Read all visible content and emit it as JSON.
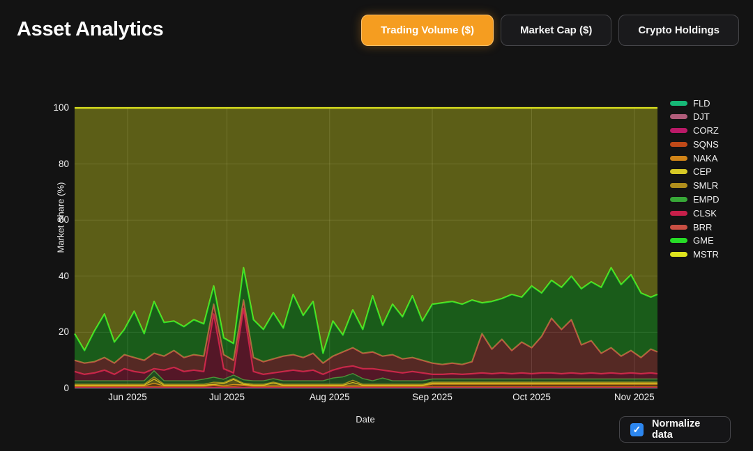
{
  "header": {
    "title": "Asset Analytics"
  },
  "toolbar": {
    "buttons": [
      {
        "label": "Trading Volume ($)",
        "active": true
      },
      {
        "label": "Market Cap ($)",
        "active": false
      },
      {
        "label": "Crypto Holdings",
        "active": false
      }
    ],
    "active_color": "#f59d20"
  },
  "controls": {
    "normalize_label": "Normalize data",
    "checked": true,
    "checkbox_color": "#2d87f0",
    "checkmark": "✓"
  },
  "chart_data": {
    "type": "area",
    "stacked": true,
    "normalized_to_100": true,
    "xlabel": "Date",
    "ylabel": "Market Share (%)",
    "ylim": [
      0,
      100
    ],
    "yticks": [
      0,
      20,
      40,
      60,
      80,
      100
    ],
    "x_start_date": "2025-05-16",
    "x_days": [
      0,
      3,
      6,
      9,
      12,
      15,
      18,
      21,
      24,
      27,
      30,
      33,
      36,
      39,
      42,
      45,
      48,
      51,
      54,
      57,
      60,
      63,
      66,
      69,
      72,
      75,
      78,
      81,
      84,
      87,
      90,
      93,
      96,
      99,
      102,
      105,
      108,
      111,
      114,
      117,
      120,
      123,
      126,
      129,
      132,
      135,
      138,
      141,
      144,
      147,
      150,
      153,
      156,
      159,
      162,
      165,
      168,
      171,
      174,
      176
    ],
    "x_total_days": 176,
    "xticks": [
      {
        "day": 16,
        "label": "Jun 2025"
      },
      {
        "day": 46,
        "label": "Jul 2025"
      },
      {
        "day": 77,
        "label": "Aug 2025"
      },
      {
        "day": 108,
        "label": "Sep 2025"
      },
      {
        "day": 138,
        "label": "Oct 2025"
      },
      {
        "day": 169,
        "label": "Nov 2025"
      }
    ],
    "grid": true,
    "legend_position": "right",
    "fill_alpha": 0.36,
    "series": [
      {
        "name": "FLD",
        "color": "#16b877",
        "values": [
          0.1,
          0.1,
          0.1,
          0.1,
          0.1,
          0.1,
          0.1,
          0.1,
          0.1,
          0.1,
          0.1,
          0.1,
          0.1,
          0.1,
          0.1,
          0.1,
          0.1,
          0.1,
          0.1,
          0.1,
          0.1,
          0.1,
          0.1,
          0.1,
          0.1,
          0.1,
          0.1,
          0.1,
          0.1,
          0.1,
          0.1,
          0.1,
          0.1,
          0.1,
          0.1,
          0.1,
          0.1,
          0.1,
          0.1,
          0.1,
          0.1,
          0.1,
          0.1,
          0.1,
          0.1,
          0.1,
          0.1,
          0.1,
          0.1,
          0.1,
          0.1,
          0.1,
          0.1,
          0.1,
          0.1,
          0.1,
          0.1,
          0.1,
          0.1,
          0.1
        ]
      },
      {
        "name": "DJT",
        "color": "#b05c7a",
        "values": [
          0.1,
          0.1,
          0.1,
          0.1,
          0.1,
          0.1,
          0.1,
          0.1,
          0.1,
          0.1,
          0.1,
          0.1,
          0.1,
          0.1,
          0.1,
          0.1,
          0.1,
          0.1,
          0.1,
          0.1,
          0.1,
          0.1,
          0.1,
          0.1,
          0.1,
          0.1,
          0.1,
          0.1,
          0.1,
          0.1,
          0.1,
          0.1,
          0.1,
          0.1,
          0.1,
          0.1,
          0.1,
          0.1,
          0.1,
          0.1,
          0.1,
          0.1,
          0.1,
          0.1,
          0.1,
          0.1,
          0.1,
          0.1,
          0.1,
          0.1,
          0.1,
          0.1,
          0.1,
          0.1,
          0.1,
          0.1,
          0.1,
          0.1,
          0.1,
          0.1
        ]
      },
      {
        "name": "CORZ",
        "color": "#bb1a68",
        "values": [
          0.15,
          0.15,
          0.15,
          0.15,
          0.15,
          0.15,
          0.15,
          0.15,
          0.15,
          0.15,
          0.15,
          0.15,
          0.15,
          0.15,
          0.15,
          0.15,
          0.15,
          0.15,
          0.15,
          0.15,
          0.15,
          0.15,
          0.15,
          0.15,
          0.15,
          0.15,
          0.15,
          0.15,
          0.15,
          0.15,
          0.15,
          0.15,
          0.15,
          0.15,
          0.15,
          0.15,
          0.15,
          0.15,
          0.15,
          0.15,
          0.15,
          0.15,
          0.15,
          0.15,
          0.15,
          0.15,
          0.15,
          0.15,
          0.15,
          0.15,
          0.15,
          0.15,
          0.15,
          0.15,
          0.15,
          0.15,
          0.15,
          0.15,
          0.15,
          0.15
        ]
      },
      {
        "name": "SQNS",
        "color": "#bf4918",
        "values": [
          0.25,
          0.25,
          0.25,
          0.25,
          0.25,
          0.25,
          0.25,
          0.25,
          0.25,
          0.25,
          0.25,
          0.25,
          0.25,
          0.25,
          0.6,
          0.25,
          0.25,
          0.6,
          0.25,
          0.25,
          0.25,
          0.25,
          0.25,
          0.25,
          0.25,
          0.25,
          0.25,
          0.25,
          0.25,
          0.25,
          0.25,
          0.25,
          0.25,
          0.25,
          0.25,
          0.25,
          0.25,
          0.25,
          0.25,
          0.25,
          0.25,
          0.25,
          0.25,
          0.25,
          0.25,
          0.25,
          0.25,
          0.25,
          0.25,
          0.25,
          0.25,
          0.25,
          0.25,
          0.25,
          0.25,
          0.25,
          0.25,
          0.25,
          0.25,
          0.25
        ]
      },
      {
        "name": "NAKA",
        "color": "#d08418",
        "values": [
          0.3,
          0.3,
          0.3,
          0.3,
          0.3,
          0.3,
          0.3,
          0.3,
          1.2,
          0.3,
          0.3,
          0.3,
          0.3,
          0.3,
          0.3,
          0.3,
          0.8,
          0.3,
          0.3,
          0.3,
          0.3,
          0.3,
          0.3,
          0.3,
          0.3,
          0.3,
          0.3,
          0.3,
          0.3,
          0.3,
          0.3,
          0.3,
          0.3,
          0.3,
          0.3,
          0.3,
          0.9,
          0.9,
          0.9,
          0.9,
          0.9,
          0.9,
          0.9,
          0.9,
          0.9,
          0.9,
          0.9,
          0.9,
          0.9,
          0.9,
          0.9,
          0.9,
          0.9,
          0.9,
          0.9,
          0.9,
          0.9,
          0.9,
          0.9,
          0.9
        ]
      },
      {
        "name": "CEP",
        "color": "#d6c926",
        "values": [
          0.25,
          0.25,
          0.25,
          0.25,
          0.25,
          0.25,
          0.25,
          0.25,
          1.5,
          0.25,
          0.25,
          0.25,
          0.25,
          0.25,
          0.25,
          0.8,
          1.8,
          0.25,
          0.25,
          0.25,
          1.0,
          0.25,
          0.25,
          0.25,
          0.25,
          0.25,
          0.25,
          0.25,
          1.2,
          0.25,
          0.25,
          0.25,
          0.25,
          0.25,
          0.25,
          0.25,
          0.35,
          0.35,
          0.35,
          0.35,
          0.35,
          0.35,
          0.35,
          0.35,
          0.35,
          0.35,
          0.35,
          0.35,
          0.35,
          0.35,
          0.35,
          0.35,
          0.35,
          0.35,
          0.35,
          0.35,
          0.35,
          0.35,
          0.35,
          0.35
        ]
      },
      {
        "name": "SMLR",
        "color": "#b08e1c",
        "values": [
          0.35,
          0.35,
          0.35,
          0.35,
          0.35,
          0.35,
          0.35,
          0.35,
          0.8,
          0.35,
          0.35,
          0.35,
          0.35,
          0.35,
          0.7,
          0.35,
          0.35,
          0.35,
          0.35,
          0.35,
          0.35,
          0.35,
          0.35,
          0.35,
          0.35,
          0.35,
          0.35,
          0.35,
          0.8,
          0.35,
          0.35,
          0.35,
          0.35,
          0.35,
          0.35,
          0.35,
          0.4,
          0.4,
          0.4,
          0.4,
          0.4,
          0.4,
          0.4,
          0.4,
          0.4,
          0.4,
          0.4,
          0.4,
          0.4,
          0.4,
          0.4,
          0.4,
          0.4,
          0.4,
          0.4,
          0.4,
          0.4,
          0.4,
          0.4,
          0.4
        ]
      },
      {
        "name": "EMPD",
        "color": "#37a837",
        "values": [
          1.2,
          1.2,
          1.2,
          1.2,
          1.2,
          1.2,
          1.2,
          1.2,
          2.2,
          1.2,
          1.2,
          1.2,
          1.2,
          1.8,
          1.8,
          1.2,
          1.2,
          1.2,
          1.2,
          1.2,
          1.2,
          1.2,
          1.2,
          1.2,
          1.2,
          1.2,
          2.2,
          2.6,
          2.4,
          2.0,
          1.2,
          2.2,
          1.2,
          1.2,
          1.2,
          1.2,
          1.1,
          1.1,
          1.1,
          1.1,
          1.1,
          1.1,
          1.1,
          1.1,
          1.1,
          1.1,
          1.1,
          1.1,
          1.1,
          1.1,
          1.1,
          1.1,
          1.1,
          1.1,
          1.1,
          1.1,
          1.1,
          1.1,
          1.1,
          1.1
        ]
      },
      {
        "name": "CLSK",
        "color": "#c71f4a",
        "values": [
          3.3,
          2.3,
          2.8,
          3.8,
          2.3,
          4.3,
          3.3,
          2.8,
          0.7,
          3.8,
          4.8,
          3.3,
          3.8,
          2.7,
          22.5,
          3.75,
          0.75,
          25.45,
          3.3,
          2.3,
          2.05,
          3.3,
          3.8,
          3.3,
          3.8,
          2.3,
          2.8,
          3.4,
          2.7,
          3.5,
          4.3,
          2.8,
          3.3,
          2.8,
          3.3,
          2.8,
          1.65,
          1.65,
          1.85,
          1.65,
          1.85,
          2.15,
          1.85,
          2.15,
          1.85,
          2.15,
          1.85,
          2.15,
          2.15,
          1.85,
          2.15,
          1.85,
          2.15,
          1.85,
          2.15,
          1.85,
          2.15,
          1.85,
          2.15,
          1.85
        ]
      },
      {
        "name": "BRR",
        "color": "#c94f43",
        "values": [
          4.0,
          4.0,
          4.0,
          4.5,
          4.0,
          5.0,
          5.0,
          4.5,
          5.5,
          5.0,
          6.0,
          5.0,
          5.5,
          5.5,
          3.5,
          5.0,
          4.5,
          3.0,
          5.0,
          4.5,
          5.0,
          5.5,
          5.5,
          5.0,
          6.0,
          4.0,
          5.0,
          5.5,
          6.5,
          5.5,
          6.0,
          5.0,
          6.0,
          5.0,
          5.0,
          4.5,
          4.0,
          3.5,
          3.8,
          3.5,
          4.3,
          14.0,
          8.8,
          12.0,
          8.3,
          11.0,
          9.3,
          13.0,
          19.5,
          15.8,
          19.0,
          10.3,
          11.5,
          7.3,
          9.0,
          6.3,
          8.0,
          5.8,
          8.5,
          7.8
        ]
      },
      {
        "name": "GME",
        "color": "#27dd27",
        "values": [
          9.5,
          4.5,
          11.0,
          15.5,
          7.5,
          9.0,
          16.5,
          9.5,
          18.5,
          12.0,
          10.5,
          11.0,
          12.5,
          11.5,
          6.5,
          6.0,
          6.0,
          11.5,
          13.5,
          11.5,
          16.5,
          10.0,
          21.5,
          15.0,
          18.5,
          3.5,
          12.5,
          6.0,
          13.5,
          8.5,
          20.0,
          11.0,
          18.0,
          15.0,
          22.0,
          14.0,
          21.0,
          22.0,
          22.0,
          21.5,
          22.0,
          11.0,
          17.0,
          14.5,
          20.0,
          16.0,
          22.0,
          15.5,
          13.5,
          15.0,
          15.5,
          20.0,
          21.0,
          23.5,
          28.5,
          25.5,
          27.0,
          23.0,
          18.5,
          20.5
        ]
      },
      {
        "name": "MSTR",
        "color": "#dde31e",
        "values": [
          80.5,
          86.5,
          79.5,
          73.5,
          83.5,
          79.0,
          72.5,
          80.5,
          69.0,
          76.5,
          76.0,
          78.0,
          75.5,
          77.0,
          63.5,
          82.0,
          84.0,
          57.0,
          75.5,
          79.0,
          73.0,
          78.5,
          66.5,
          74.0,
          69.0,
          87.5,
          76.0,
          81.0,
          72.0,
          79.0,
          67.0,
          77.5,
          70.0,
          74.5,
          67.0,
          76.0,
          70.0,
          69.5,
          69.0,
          70.0,
          68.5,
          69.5,
          69.0,
          68.0,
          66.5,
          67.5,
          63.5,
          66.0,
          61.5,
          64.0,
          60.0,
          64.5,
          62.0,
          64.0,
          57.0,
          63.0,
          59.5,
          66.0,
          67.5,
          66.5
        ]
      }
    ]
  }
}
